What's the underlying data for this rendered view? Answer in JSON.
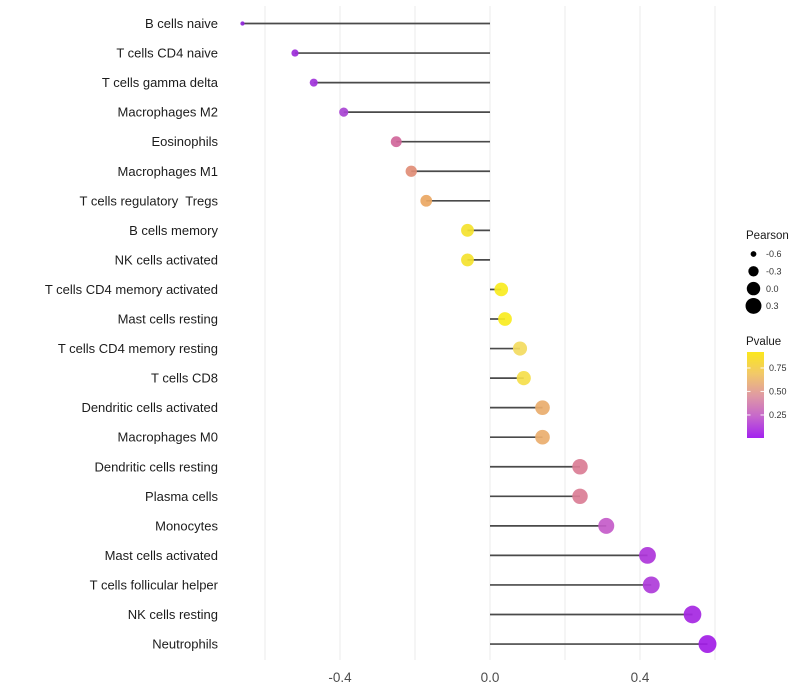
{
  "chart_data": {
    "type": "scatter",
    "variant": "lollipop",
    "title": "",
    "xlabel": "",
    "ylabel": "",
    "grid": true,
    "xlim": [
      -0.675,
      0.61
    ],
    "x_gridline_values": [
      -0.6,
      -0.4,
      -0.2,
      0.0,
      0.2,
      0.4,
      0.6
    ],
    "x_ticks": [
      {
        "value": -0.4,
        "label": "-0.4"
      },
      {
        "value": 0.0,
        "label": "0.0"
      },
      {
        "value": 0.4,
        "label": "0.4"
      }
    ],
    "points": [
      {
        "label": "B cells naive",
        "pearson": -0.66,
        "color": "#8E24D8"
      },
      {
        "label": "T cells CD4 naive",
        "pearson": -0.52,
        "color": "#9C2BD9"
      },
      {
        "label": "T cells gamma delta",
        "pearson": -0.47,
        "color": "#A133DA"
      },
      {
        "label": "Macrophages M2",
        "pearson": -0.39,
        "color": "#A843D2"
      },
      {
        "label": "Eosinophils",
        "pearson": -0.25,
        "color": "#D0669A"
      },
      {
        "label": "Macrophages M1",
        "pearson": -0.21,
        "color": "#E18D76"
      },
      {
        "label": "T cells regulatory  Tregs",
        "pearson": -0.17,
        "color": "#EAA763"
      },
      {
        "label": "B cells memory",
        "pearson": -0.06,
        "color": "#F4E22E"
      },
      {
        "label": "NK cells activated",
        "pearson": -0.06,
        "color": "#F4E22E"
      },
      {
        "label": "T cells CD4 memory activated",
        "pearson": 0.03,
        "color": "#F8EB20"
      },
      {
        "label": "Mast cells resting",
        "pearson": 0.04,
        "color": "#F8EB20"
      },
      {
        "label": "T cells CD4 memory resting",
        "pearson": 0.08,
        "color": "#F3DB5F"
      },
      {
        "label": "T cells CD8",
        "pearson": 0.09,
        "color": "#F5DE4B"
      },
      {
        "label": "Dendritic cells activated",
        "pearson": 0.14,
        "color": "#E9AD6C"
      },
      {
        "label": "Macrophages M0",
        "pearson": 0.14,
        "color": "#EAAE6E"
      },
      {
        "label": "Dendritic cells resting",
        "pearson": 0.24,
        "color": "#DA7D95"
      },
      {
        "label": "Plasma cells",
        "pearson": 0.24,
        "color": "#DA7D95"
      },
      {
        "label": "Monocytes",
        "pearson": 0.31,
        "color": "#C45BC9"
      },
      {
        "label": "Mast cells activated",
        "pearson": 0.42,
        "color": "#AE35DA"
      },
      {
        "label": "T cells follicular helper",
        "pearson": 0.43,
        "color": "#AE3BD9"
      },
      {
        "label": "NK cells resting",
        "pearson": 0.54,
        "color": "#A527E2"
      },
      {
        "label": "Neutrophils",
        "pearson": 0.58,
        "color": "#A21DE6"
      }
    ],
    "legend_size": {
      "title": "Pearson",
      "breaks": [
        {
          "value": -0.6,
          "label": "-0.6"
        },
        {
          "value": -0.3,
          "label": "-0.3"
        },
        {
          "value": 0.0,
          "label": "0.0"
        },
        {
          "value": 0.3,
          "label": "0.3"
        }
      ],
      "dot_color": "#000000"
    },
    "legend_color": {
      "title": "Pvalue",
      "ticks": [
        {
          "value": 0.75,
          "label": "0.75"
        },
        {
          "value": 0.5,
          "label": "0.50"
        },
        {
          "value": 0.25,
          "label": "0.25"
        }
      ],
      "bar_range": [
        0.92,
        0.005
      ],
      "gradient_top_to_bottom": [
        "#FBE71C",
        "#F2C968",
        "#E09BA2",
        "#C667CC",
        "#A322EF"
      ]
    },
    "stem_color": "#4a4a4a",
    "gridline_color": "#ebebeb",
    "background": "#ffffff"
  }
}
